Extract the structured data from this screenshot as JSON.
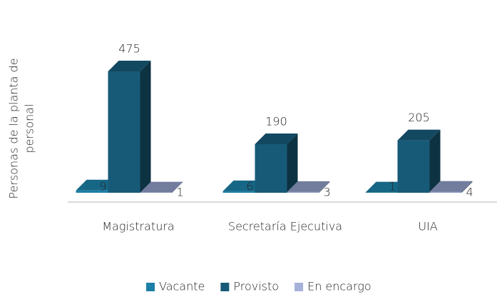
{
  "chart_data": {
    "type": "bar3d",
    "y_label": [
      "Personas de la planta de",
      "personal"
    ],
    "categories": [
      "Magistratura",
      "Secretaría Ejecutiva",
      "UIA"
    ],
    "series": [
      {
        "name": "Vacante",
        "color": "#1b7fa8",
        "values": [
          9,
          6,
          1
        ]
      },
      {
        "name": "Provisto",
        "color": "#175a78",
        "values": [
          475,
          190,
          205
        ]
      },
      {
        "name": "En encargo",
        "color": "#8f9cc6",
        "values": [
          1,
          3,
          4
        ]
      }
    ],
    "ylim": [
      0,
      500
    ]
  }
}
